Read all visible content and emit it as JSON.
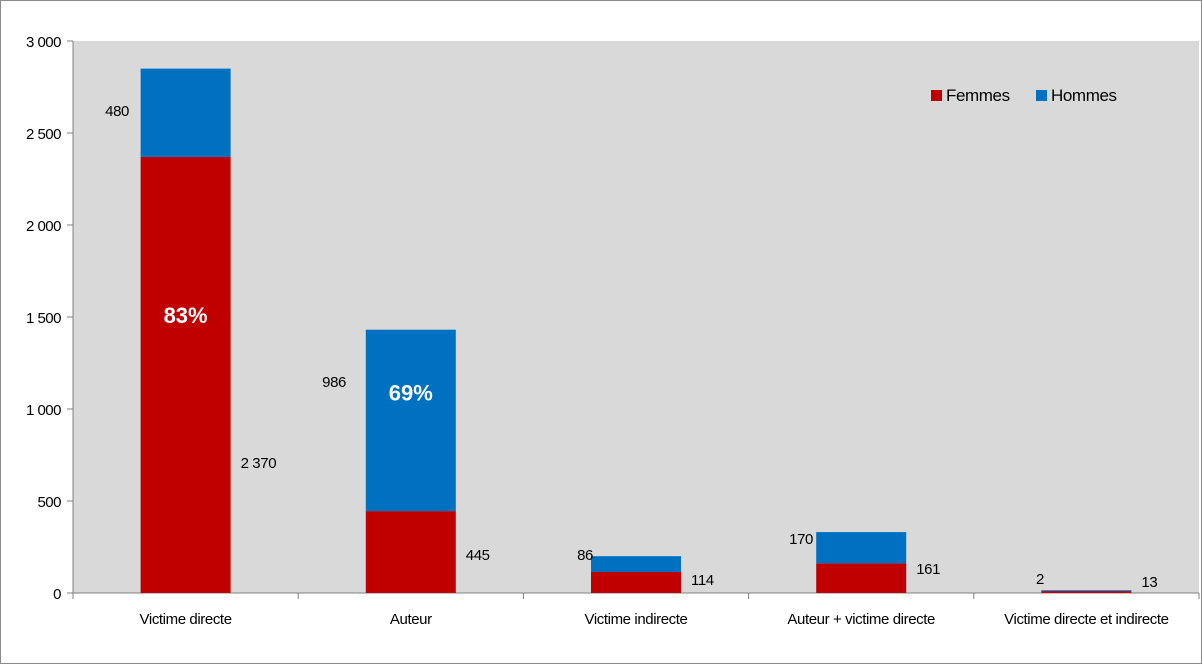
{
  "chart_data": {
    "type": "bar",
    "stacked": true,
    "title": "",
    "xlabel": "",
    "ylabel": "",
    "ylim": [
      0,
      3000
    ],
    "yticks": [
      0,
      500,
      1000,
      1500,
      2000,
      2500,
      3000
    ],
    "ytick_labels": [
      "0",
      "500",
      "1 000",
      "1 500",
      "2 000",
      "2 500",
      "3 000"
    ],
    "categories": [
      "Victime directe",
      "Auteur",
      "Victime indirecte",
      "Auteur + victime directe",
      "Victime directe et indirecte"
    ],
    "series": [
      {
        "name": "Femmes",
        "color": "#c00000",
        "values": [
          2370,
          445,
          114,
          161,
          13
        ],
        "labels": [
          "2 370",
          "445",
          "114",
          "161",
          "13"
        ]
      },
      {
        "name": "Hommes",
        "color": "#0070c0",
        "values": [
          480,
          986,
          86,
          170,
          2
        ],
        "labels": [
          "480",
          "986",
          "86",
          "170",
          "2"
        ]
      }
    ],
    "annotations": [
      {
        "category": "Victime directe",
        "series": "Femmes",
        "text": "83%"
      },
      {
        "category": "Auteur",
        "series": "Hommes",
        "text": "69%"
      }
    ],
    "legend_position": "top-right",
    "grid": false,
    "plot_background": "#d9d9d9"
  }
}
